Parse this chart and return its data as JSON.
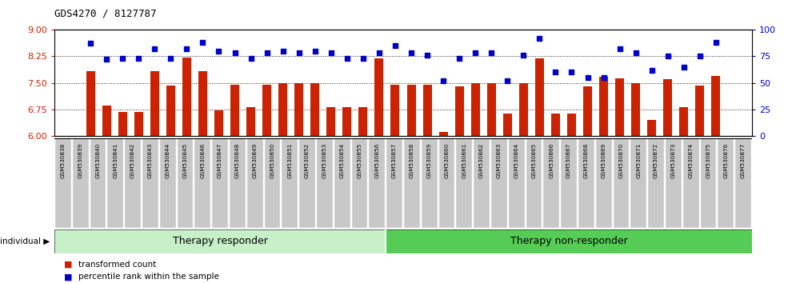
{
  "title": "GDS4270 / 8127787",
  "categories": [
    "GSM530838",
    "GSM530839",
    "GSM530840",
    "GSM530841",
    "GSM530842",
    "GSM530843",
    "GSM530844",
    "GSM530845",
    "GSM530846",
    "GSM530847",
    "GSM530848",
    "GSM530849",
    "GSM530850",
    "GSM530851",
    "GSM530852",
    "GSM530853",
    "GSM530854",
    "GSM530855",
    "GSM530856",
    "GSM530857",
    "GSM530858",
    "GSM530859",
    "GSM530860",
    "GSM530861",
    "GSM530862",
    "GSM530863",
    "GSM530864",
    "GSM530865",
    "GSM530866",
    "GSM530867",
    "GSM530868",
    "GSM530869",
    "GSM530870",
    "GSM530871",
    "GSM530872",
    "GSM530873",
    "GSM530874",
    "GSM530875",
    "GSM530876",
    "GSM530877"
  ],
  "bar_values": [
    7.82,
    6.86,
    6.68,
    6.68,
    7.82,
    7.42,
    8.22,
    7.82,
    6.72,
    7.45,
    6.82,
    7.45,
    7.48,
    7.5,
    7.48,
    6.82,
    6.82,
    6.82,
    8.18,
    7.45,
    7.45,
    7.45,
    6.12,
    7.4,
    7.5,
    7.5,
    6.62,
    7.5,
    8.18,
    6.64,
    6.64,
    7.4,
    7.68,
    7.62,
    7.5,
    6.45,
    7.6,
    6.82,
    7.42,
    7.7
  ],
  "dot_values": [
    87,
    72,
    73,
    73,
    82,
    73,
    82,
    88,
    80,
    78,
    73,
    78,
    80,
    78,
    80,
    78,
    73,
    73,
    78,
    85,
    78,
    76,
    52,
    73,
    78,
    78,
    52,
    76,
    92,
    60,
    60,
    55,
    55,
    82,
    78,
    62,
    75,
    65,
    75,
    88
  ],
  "ylim_left": [
    6.0,
    9.0
  ],
  "ylim_right": [
    0,
    100
  ],
  "yticks_left": [
    6.0,
    6.75,
    7.5,
    8.25,
    9.0
  ],
  "yticks_right": [
    0,
    25,
    50,
    75,
    100
  ],
  "bar_color": "#cc2200",
  "dot_color": "#0000cc",
  "responder_split": 19,
  "group1_label": "Therapy responder",
  "group2_label": "Therapy non-responder",
  "group_bg_color_light": "#c8f0c8",
  "group_bg_color_dark": "#55cc55",
  "tick_bg_color": "#c8c8c8",
  "individual_label": "individual",
  "legend_bar_label": "transformed count",
  "legend_dot_label": "percentile rank within the sample"
}
